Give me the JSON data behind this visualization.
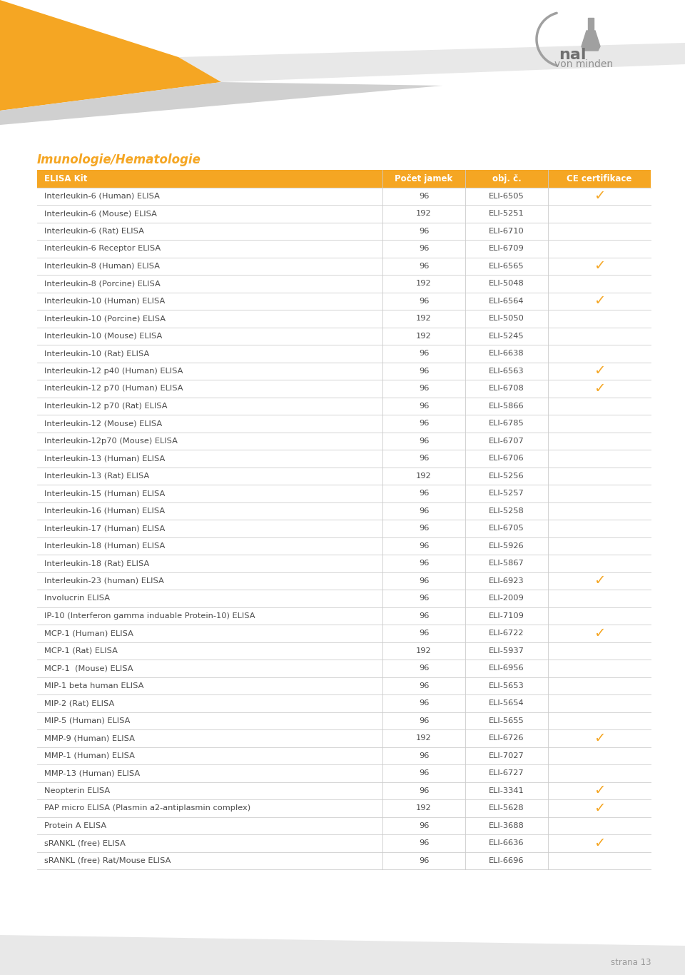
{
  "title": "Imunologie/Hematologie",
  "header": [
    "ELISA Kit",
    "Počet jamek",
    "obj. č.",
    "CE certifikace"
  ],
  "rows": [
    [
      "Interleukin-6 (Human) ELISA",
      "96",
      "ELI-6505",
      true
    ],
    [
      "Interleukin-6 (Mouse) ELISA",
      "192",
      "ELI-5251",
      false
    ],
    [
      "Interleukin-6 (Rat) ELISA",
      "96",
      "ELI-6710",
      false
    ],
    [
      "Interleukin-6 Receptor ELISA",
      "96",
      "ELI-6709",
      false
    ],
    [
      "Interleukin-8 (Human) ELISA",
      "96",
      "ELI-6565",
      true
    ],
    [
      "Interleukin-8 (Porcine) ELISA",
      "192",
      "ELI-5048",
      false
    ],
    [
      "Interleukin-10 (Human) ELISA",
      "96",
      "ELI-6564",
      true
    ],
    [
      "Interleukin-10 (Porcine) ELISA",
      "192",
      "ELI-5050",
      false
    ],
    [
      "Interleukin-10 (Mouse) ELISA",
      "192",
      "ELI-5245",
      false
    ],
    [
      "Interleukin-10 (Rat) ELISA",
      "96",
      "ELI-6638",
      false
    ],
    [
      "Interleukin-12 p40 (Human) ELISA",
      "96",
      "ELI-6563",
      true
    ],
    [
      "Interleukin-12 p70 (Human) ELISA",
      "96",
      "ELI-6708",
      true
    ],
    [
      "Interleukin-12 p70 (Rat) ELISA",
      "96",
      "ELI-5866",
      false
    ],
    [
      "Interleukin-12 (Mouse) ELISA",
      "96",
      "ELI-6785",
      false
    ],
    [
      "Interleukin-12p70 (Mouse) ELISA",
      "96",
      "ELI-6707",
      false
    ],
    [
      "Interleukin-13 (Human) ELISA",
      "96",
      "ELI-6706",
      false
    ],
    [
      "Interleukin-13 (Rat) ELISA",
      "192",
      "ELI-5256",
      false
    ],
    [
      "Interleukin-15 (Human) ELISA",
      "96",
      "ELI-5257",
      false
    ],
    [
      "Interleukin-16 (Human) ELISA",
      "96",
      "ELI-5258",
      false
    ],
    [
      "Interleukin-17 (Human) ELISA",
      "96",
      "ELI-6705",
      false
    ],
    [
      "Interleukin-18 (Human) ELISA",
      "96",
      "ELI-5926",
      false
    ],
    [
      "Interleukin-18 (Rat) ELISA",
      "96",
      "ELI-5867",
      false
    ],
    [
      "Interleukin-23 (human) ELISA",
      "96",
      "ELI-6923",
      true
    ],
    [
      "Involucrin ELISA",
      "96",
      "ELI-2009",
      false
    ],
    [
      "IP-10 (Interferon gamma induable Protein-10) ELISA",
      "96",
      "ELI-7109",
      false
    ],
    [
      "MCP-1 (Human) ELISA",
      "96",
      "ELI-6722",
      true
    ],
    [
      "MCP-1 (Rat) ELISA",
      "192",
      "ELI-5937",
      false
    ],
    [
      "MCP-1  (Mouse) ELISA",
      "96",
      "ELI-6956",
      false
    ],
    [
      "MIP-1 beta human ELISA",
      "96",
      "ELI-5653",
      false
    ],
    [
      "MIP-2 (Rat) ELISA",
      "96",
      "ELI-5654",
      false
    ],
    [
      "MIP-5 (Human) ELISA",
      "96",
      "ELI-5655",
      false
    ],
    [
      "MMP-9 (Human) ELISA",
      "192",
      "ELI-6726",
      true
    ],
    [
      "MMP-1 (Human) ELISA",
      "96",
      "ELI-7027",
      false
    ],
    [
      "MMP-13 (Human) ELISA",
      "96",
      "ELI-6727",
      false
    ],
    [
      "Neopterin ELISA",
      "96",
      "ELI-3341",
      true
    ],
    [
      "PAP micro ELISA (Plasmin a2-antiplasmin complex)",
      "192",
      "ELI-5628",
      true
    ],
    [
      "Protein A ELISA",
      "96",
      "ELI-3688",
      false
    ],
    [
      "sRANKL (free) ELISA",
      "96",
      "ELI-6636",
      true
    ],
    [
      "sRANKL (free) Rat/Mouse ELISA",
      "96",
      "ELI-6696",
      false
    ]
  ],
  "header_bg": "#F5A623",
  "header_text": "#FFFFFF",
  "row_text": "#4A4A4A",
  "divider_color": "#CCCCCC",
  "checkmark_color": "#F5A623",
  "title_color": "#F5A623",
  "bg_color": "#FFFFFF",
  "page_number": "strana 13",
  "orange_color": "#F5A623",
  "gray_color": "#D0D0D0",
  "light_gray": "#E8E8E8"
}
